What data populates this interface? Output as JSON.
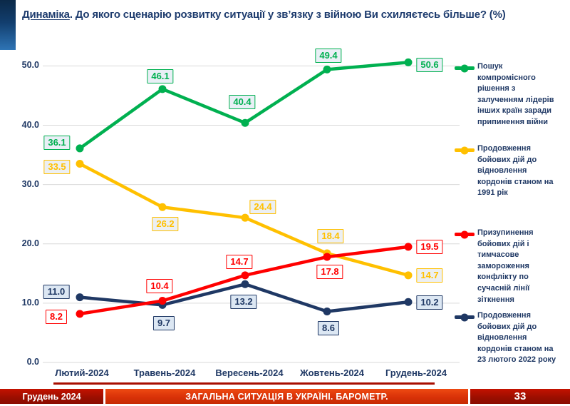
{
  "title": {
    "lead": "Динаміка",
    "rest": ". До якого сценарію розвитку ситуації у зв’язку з війною Ви схиляєтесь більше? (%)"
  },
  "chart_data": {
    "type": "line",
    "title": "Динаміка. До якого сценарію розвитку ситуації у зв’язку з війною Ви схиляєтесь більше? (%)",
    "categories": [
      "Лютий-2024",
      "Травень-2024",
      "Вересень-2024",
      "Жовтень-2024",
      "Грудень-2024"
    ],
    "ylim": [
      0,
      55
    ],
    "ytick_values": [
      0,
      10,
      20,
      30,
      40,
      50
    ],
    "ytick_labels": [
      "0.0",
      "10.0",
      "20.0",
      "30.0",
      "40.0",
      "50.0"
    ],
    "grid": true,
    "legend_position": "right",
    "series": [
      {
        "id": "green-compromise",
        "name": "Пошук компромісного рішення з залученням лідерів інших країн заради припинення війни",
        "color": "#00b050",
        "label_bg": "#e9eff6",
        "values": [
          36.1,
          46.1,
          40.4,
          49.4,
          50.6
        ],
        "labels": [
          "36.1",
          "46.1",
          "40.4",
          "49.4",
          "50.6"
        ],
        "label_offsets": [
          [
            -32,
            -8
          ],
          [
            -3,
            -18
          ],
          [
            -4,
            -29
          ],
          [
            2,
            -19
          ],
          [
            30,
            4
          ]
        ]
      },
      {
        "id": "yellow-borders-1991",
        "name": "Продовження бойових дій до відновлення кордонів станом на 1991 рік",
        "color": "#ffc000",
        "label_bg": "#eceff2",
        "values": [
          33.5,
          26.2,
          24.4,
          18.4,
          14.7
        ],
        "labels": [
          "33.5",
          "26.2",
          "24.4",
          "18.4",
          "14.7"
        ],
        "label_offsets": [
          [
            -32,
            4
          ],
          [
            4,
            24
          ],
          [
            25,
            -15
          ],
          [
            5,
            -24
          ],
          [
            30,
            0
          ]
        ]
      },
      {
        "id": "red-freeze-conflict",
        "name": "Призупинення бойових дій і тимчасове замороження конфлікту по сучасній лінії зіткнення",
        "color": "#ff0000",
        "label_bg": "#ffffff",
        "values": [
          8.2,
          10.4,
          14.7,
          17.8,
          19.5
        ],
        "labels": [
          "8.2",
          "10.4",
          "14.7",
          "17.8",
          "19.5"
        ],
        "label_offsets": [
          [
            -33,
            4
          ],
          [
            -4,
            -21
          ],
          [
            -8,
            -19
          ],
          [
            4,
            21
          ],
          [
            30,
            0
          ]
        ]
      },
      {
        "id": "navy-borders-2022",
        "name": "Продовження бойових дій до відновлення кордонів станом на 23 лютого 2022 року",
        "color": "#1f3864",
        "label_bg": "#dce7f3",
        "values": [
          11.0,
          9.7,
          13.2,
          8.6,
          10.2
        ],
        "labels": [
          "11.0",
          "9.7",
          "13.2",
          "8.6",
          "10.2"
        ],
        "label_offsets": [
          [
            -33,
            -8
          ],
          [
            2,
            26
          ],
          [
            -2,
            25
          ],
          [
            2,
            23
          ],
          [
            30,
            1
          ]
        ]
      }
    ]
  },
  "footer": {
    "date": "Грудень 2024",
    "title": "ЗАГАЛЬНА СИТУАЦІЯ В УКРАЇНІ. БАРОМЕТР.",
    "page": "33"
  }
}
